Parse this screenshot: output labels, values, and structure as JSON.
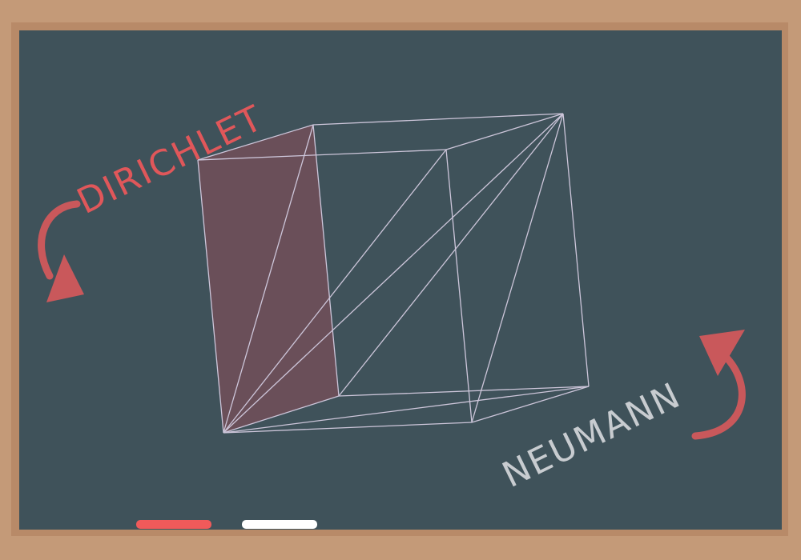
{
  "board": {
    "frame_color": "#c49a78",
    "frame_edge_color": "#b88a68",
    "surface_color": "#3f525a"
  },
  "labels": {
    "dirichlet": "DIRICHLET",
    "neumann": "NEUMANN"
  },
  "colors": {
    "dirichlet": "#e0575a",
    "neumann": "#c8ccd0",
    "arrow": "#c9585b",
    "wire": "#cdc6da",
    "face_fill": "#7a4f5a",
    "chalk_red": "#f05a5a",
    "chalk_white": "#ffffff"
  },
  "diagram": {
    "shape": "cube-wireframe",
    "highlighted_face": "left"
  }
}
